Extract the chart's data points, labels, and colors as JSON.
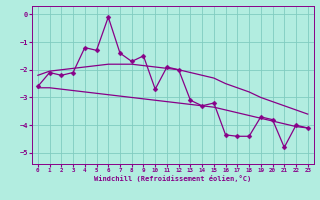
{
  "xlabel": "Windchill (Refroidissement éolien,°C)",
  "background_color": "#b2ede0",
  "grid_color": "#80ccc0",
  "line_color": "#880088",
  "hours": [
    0,
    1,
    2,
    3,
    4,
    5,
    6,
    7,
    8,
    9,
    10,
    11,
    12,
    13,
    14,
    15,
    16,
    17,
    18,
    19,
    20,
    21,
    22,
    23
  ],
  "y_main": [
    -2.6,
    -2.1,
    -2.2,
    -2.1,
    -1.2,
    -1.3,
    -0.1,
    -1.4,
    -1.7,
    -1.5,
    -2.7,
    -1.9,
    -2.0,
    -3.1,
    -3.3,
    -3.2,
    -4.35,
    -4.4,
    -4.4,
    -3.7,
    -3.8,
    -4.8,
    -4.0,
    -4.1
  ],
  "y_upper": [
    -2.2,
    -2.05,
    -2.0,
    -1.95,
    -1.9,
    -1.85,
    -1.8,
    -1.8,
    -1.8,
    -1.85,
    -1.9,
    -1.95,
    -2.0,
    -2.1,
    -2.2,
    -2.3,
    -2.5,
    -2.65,
    -2.8,
    -3.0,
    -3.15,
    -3.3,
    -3.45,
    -3.6
  ],
  "y_lower": [
    -2.65,
    -2.65,
    -2.7,
    -2.75,
    -2.8,
    -2.85,
    -2.9,
    -2.95,
    -3.0,
    -3.05,
    -3.1,
    -3.15,
    -3.2,
    -3.25,
    -3.3,
    -3.35,
    -3.45,
    -3.55,
    -3.65,
    -3.75,
    -3.85,
    -3.95,
    -4.05,
    -4.1
  ],
  "ylim": [
    -5.4,
    0.3
  ],
  "yticks": [
    0,
    -1,
    -2,
    -3,
    -4,
    -5
  ],
  "xlim": [
    -0.5,
    23.5
  ],
  "xticks": [
    0,
    1,
    2,
    3,
    4,
    5,
    6,
    7,
    8,
    9,
    10,
    11,
    12,
    13,
    14,
    15,
    16,
    17,
    18,
    19,
    20,
    21,
    22,
    23
  ]
}
